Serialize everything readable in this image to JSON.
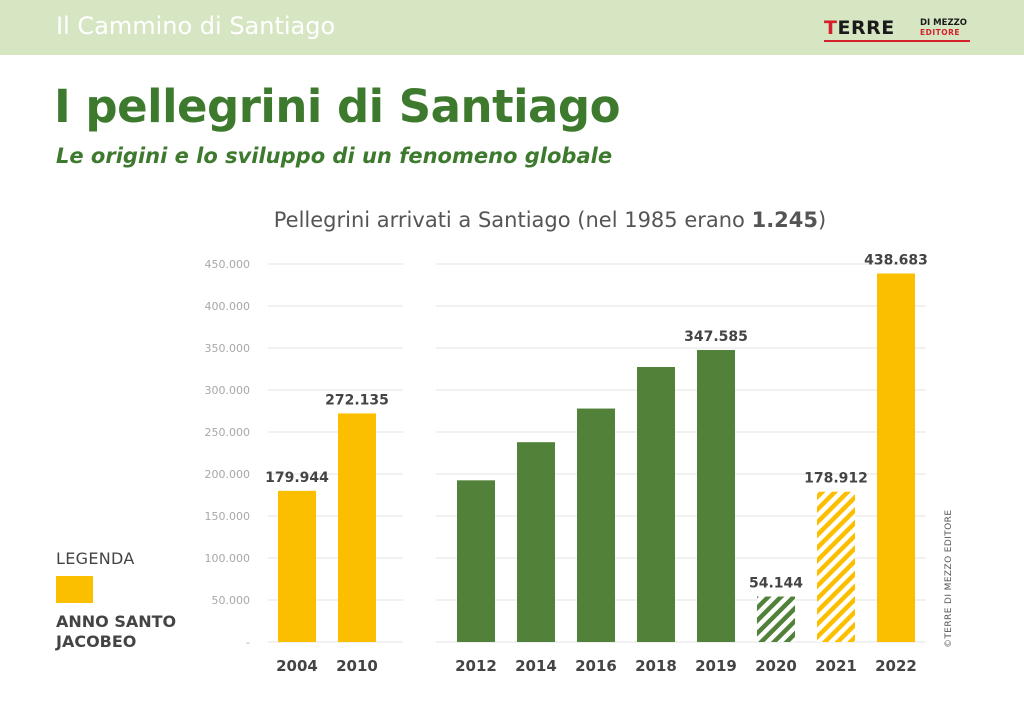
{
  "header": {
    "section_title": "Il Cammino di Santiago",
    "logo": {
      "terre_t": "T",
      "terre_rest": "ERRE",
      "di_mezzo": "DI MEZZO",
      "editore": "EDITORE",
      "accent_color": "#d4202a"
    }
  },
  "title": "I pellegrini di Santiago",
  "subtitle": "Le origini e lo sviluppo di un fenomeno globale",
  "chart_title": {
    "text": "Pellegrini arrivati a Santiago (nel 1985 erano ",
    "bold": "1.245",
    "close": ")"
  },
  "legend": {
    "title": "LEGENDA",
    "label": "ANNO SANTO JACOBEO",
    "color": "#fbbf00"
  },
  "credit": "©TERRE DI MEZZO EDITORE",
  "chart_data": {
    "type": "bar",
    "title": "Pellegrini arrivati a Santiago (nel 1985 erano 1.245)",
    "ylim": [
      0,
      450000
    ],
    "y_ticks": [
      {
        "value": 0,
        "label": "-"
      },
      {
        "value": 50000,
        "label": "50.000"
      },
      {
        "value": 100000,
        "label": "100.000"
      },
      {
        "value": 150000,
        "label": "150.000"
      },
      {
        "value": 200000,
        "label": "200.000"
      },
      {
        "value": 250000,
        "label": "250.000"
      },
      {
        "value": 300000,
        "label": "300.000"
      },
      {
        "value": 350000,
        "label": "350.000"
      },
      {
        "value": 400000,
        "label": "400.000"
      },
      {
        "value": 450000,
        "label": "450.000"
      }
    ],
    "grid": true,
    "legend_placement": "bottom-left",
    "colors": {
      "holy_year": "#fbbf00",
      "normal": "#52813a"
    },
    "panels": [
      {
        "bars": [
          {
            "year": "2004",
            "value": 179944,
            "label": "179.944",
            "holy_year": true,
            "hatched": false
          },
          {
            "year": "2010",
            "value": 272135,
            "label": "272.135",
            "holy_year": true,
            "hatched": false
          }
        ]
      },
      {
        "bars": [
          {
            "year": "2012",
            "value": 192488,
            "label": "",
            "holy_year": false,
            "hatched": false
          },
          {
            "year": "2014",
            "value": 237886,
            "label": "",
            "holy_year": false,
            "hatched": false
          },
          {
            "year": "2016",
            "value": 277915,
            "label": "",
            "holy_year": false,
            "hatched": false
          },
          {
            "year": "2018",
            "value": 327378,
            "label": "",
            "holy_year": false,
            "hatched": false
          },
          {
            "year": "2019",
            "value": 347585,
            "label": "347.585",
            "holy_year": false,
            "hatched": false
          },
          {
            "year": "2020",
            "value": 54144,
            "label": "54.144",
            "holy_year": false,
            "hatched": true
          },
          {
            "year": "2021",
            "value": 178912,
            "label": "178.912",
            "holy_year": true,
            "hatched": true
          },
          {
            "year": "2022",
            "value": 438683,
            "label": "438.683",
            "holy_year": true,
            "hatched": false
          }
        ]
      }
    ]
  }
}
